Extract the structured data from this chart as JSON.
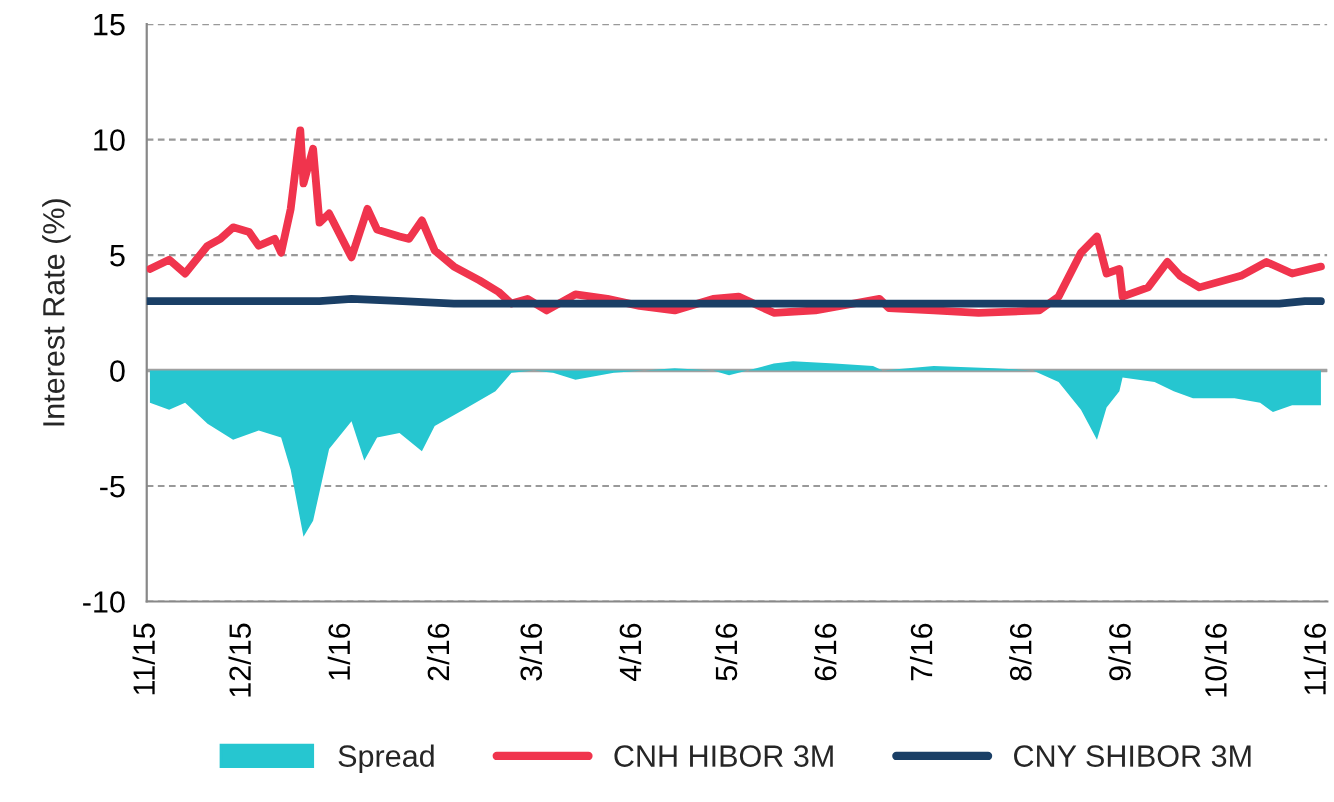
{
  "chart_data": {
    "type": "line",
    "ylabel": "Interest Rate (%)",
    "xlim": [
      "2015-11-01",
      "2016-11-04"
    ],
    "xticks": [
      {
        "value": "2015-11-01",
        "label": "11/15"
      },
      {
        "value": "2015-12-01",
        "label": "12/15"
      },
      {
        "value": "2016-01-01",
        "label": "1/16"
      },
      {
        "value": "2016-02-01",
        "label": "2/16"
      },
      {
        "value": "2016-03-01",
        "label": "3/16"
      },
      {
        "value": "2016-04-01",
        "label": "4/16"
      },
      {
        "value": "2016-05-01",
        "label": "5/16"
      },
      {
        "value": "2016-06-01",
        "label": "6/16"
      },
      {
        "value": "2016-07-01",
        "label": "7/16"
      },
      {
        "value": "2016-08-01",
        "label": "8/16"
      },
      {
        "value": "2016-09-01",
        "label": "9/16"
      },
      {
        "value": "2016-10-01",
        "label": "10/16"
      },
      {
        "value": "2016-11-01",
        "label": "11/16"
      }
    ],
    "ylim": [
      -10,
      15
    ],
    "yticks": [
      -10,
      -5,
      0,
      5,
      10,
      15
    ],
    "grid": "y",
    "legend": "bottom",
    "ref_lines": [
      {
        "axis": "y",
        "value": 0,
        "color": "#a0a0a0",
        "line_style": "solid"
      }
    ],
    "series": [
      {
        "name": "Spread",
        "type": "area",
        "color": "#26c6d0",
        "x": [
          "2015-11-02",
          "2015-11-08",
          "2015-11-13",
          "2015-11-20",
          "2015-11-28",
          "2015-12-06",
          "2015-12-13",
          "2015-12-16",
          "2015-12-20",
          "2015-12-23",
          "2015-12-28",
          "2016-01-04",
          "2016-01-08",
          "2016-01-12",
          "2016-01-19",
          "2016-01-26",
          "2016-01-30",
          "2016-02-08",
          "2016-02-18",
          "2016-02-23",
          "2016-03-01",
          "2016-03-07",
          "2016-03-14",
          "2016-03-26",
          "2016-04-14",
          "2016-04-26",
          "2016-05-01",
          "2016-05-15",
          "2016-05-21",
          "2016-06-03",
          "2016-06-15",
          "2016-06-18",
          "2016-07-04",
          "2016-07-23",
          "2016-08-04",
          "2016-08-12",
          "2016-08-19",
          "2016-08-24",
          "2016-08-27",
          "2016-08-31",
          "2016-09-01",
          "2016-09-11",
          "2016-09-17",
          "2016-09-23",
          "2016-10-06",
          "2016-10-14",
          "2016-10-18",
          "2016-10-24",
          "2016-11-02"
        ],
        "values": [
          -1.4,
          -1.7,
          -1.4,
          -2.3,
          -3.0,
          -2.6,
          -2.9,
          -4.3,
          -7.2,
          -6.5,
          -3.4,
          -2.2,
          -3.9,
          -2.9,
          -2.7,
          -3.5,
          -2.4,
          -1.7,
          -0.9,
          -0.1,
          0,
          -0.1,
          -0.4,
          -0.1,
          0.1,
          0,
          -0.2,
          0.3,
          0.4,
          0.3,
          0.2,
          0,
          0.2,
          0.1,
          0,
          -0.5,
          -1.7,
          -3.0,
          -1.6,
          -0.9,
          -0.3,
          -0.5,
          -0.9,
          -1.2,
          -1.2,
          -1.4,
          -1.8,
          -1.5,
          -1.5
        ]
      },
      {
        "name": "CNH HIBOR 3M",
        "color": "#f0344d",
        "x": [
          "2015-11-02",
          "2015-11-08",
          "2015-11-13",
          "2015-11-20",
          "2015-11-24",
          "2015-11-28",
          "2015-12-03",
          "2015-12-06",
          "2015-12-11",
          "2015-12-13",
          "2015-12-16",
          "2015-12-19",
          "2015-12-20",
          "2015-12-23",
          "2015-12-25",
          "2015-12-28",
          "2016-01-04",
          "2016-01-09",
          "2016-01-12",
          "2016-01-19",
          "2016-01-22",
          "2016-01-26",
          "2016-01-30",
          "2016-02-05",
          "2016-02-13",
          "2016-02-19",
          "2016-02-23",
          "2016-02-28",
          "2016-03-05",
          "2016-03-14",
          "2016-03-24",
          "2016-04-03",
          "2016-04-14",
          "2016-04-26",
          "2016-05-04",
          "2016-05-15",
          "2016-05-28",
          "2016-06-17",
          "2016-06-20",
          "2016-07-04",
          "2016-07-18",
          "2016-08-06",
          "2016-08-12",
          "2016-08-19",
          "2016-08-24",
          "2016-08-27",
          "2016-08-31",
          "2016-09-01",
          "2016-09-09",
          "2016-09-15",
          "2016-09-19",
          "2016-09-25",
          "2016-10-08",
          "2016-10-16",
          "2016-10-24",
          "2016-11-02"
        ],
        "values": [
          4.4,
          4.8,
          4.2,
          5.4,
          5.7,
          6.2,
          6.0,
          5.4,
          5.7,
          5.1,
          7.0,
          10.4,
          8.1,
          9.6,
          6.4,
          6.8,
          4.9,
          7.0,
          6.1,
          5.8,
          5.7,
          6.5,
          5.2,
          4.5,
          3.9,
          3.4,
          2.9,
          3.1,
          2.6,
          3.3,
          3.1,
          2.8,
          2.6,
          3.1,
          3.2,
          2.5,
          2.6,
          3.1,
          2.7,
          2.6,
          2.5,
          2.6,
          3.2,
          5.1,
          5.8,
          4.2,
          4.4,
          3.2,
          3.6,
          4.7,
          4.1,
          3.6,
          4.1,
          4.7,
          4.2,
          4.5
        ]
      },
      {
        "name": "CNY SHIBOR 3M",
        "color": "#1a3f66",
        "x": [
          "2015-11-01",
          "2015-12-25",
          "2016-01-04",
          "2016-01-20",
          "2016-02-05",
          "2016-02-20",
          "2016-08-01",
          "2016-10-20",
          "2016-10-28",
          "2016-11-02"
        ],
        "values": [
          3.0,
          3.0,
          3.1,
          3.0,
          2.9,
          2.9,
          2.9,
          2.9,
          3.0,
          3.0
        ]
      }
    ]
  }
}
